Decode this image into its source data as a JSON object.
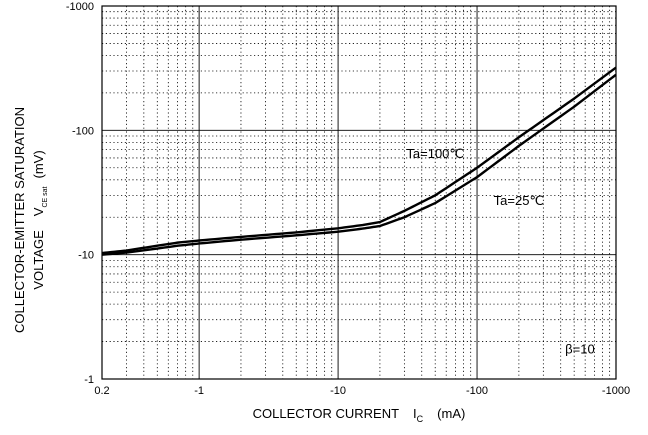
{
  "chart_data": {
    "type": "line",
    "title": "",
    "xlabel": "COLLECTOR CURRENT",
    "xlabel_symbol": "I",
    "xlabel_sub": "C",
    "xlabel_unit": "(mA)",
    "ylabel_line1": "COLLECTOR-EMITTER SATURATION",
    "ylabel_line2": "VOLTAGE",
    "ylabel_symbol": "V",
    "ylabel_sub": "CE sat",
    "ylabel_unit": "(mV)",
    "x_scale": "log",
    "y_scale": "log",
    "xlim": [
      0.2,
      1000
    ],
    "ylim": [
      1,
      1000
    ],
    "x_ticks": [
      {
        "value": 0.2,
        "label": "0.2"
      },
      {
        "value": 1,
        "label": "-1"
      },
      {
        "value": 10,
        "label": "-10"
      },
      {
        "value": 100,
        "label": "-100"
      },
      {
        "value": 1000,
        "label": "-1000"
      }
    ],
    "y_ticks": [
      {
        "value": 1,
        "label": "-1"
      },
      {
        "value": 10,
        "label": "-10"
      },
      {
        "value": 100,
        "label": "-100"
      },
      {
        "value": 1000,
        "label": "-1000"
      }
    ],
    "grid": true,
    "series": [
      {
        "name": "Ta=100℃",
        "x": [
          0.2,
          0.3,
          0.5,
          0.7,
          1,
          2,
          5,
          10,
          15,
          20,
          30,
          50,
          100,
          200,
          500,
          1000
        ],
        "y": [
          10.3,
          10.8,
          11.8,
          12.5,
          13.0,
          13.9,
          15.1,
          16.3,
          17.3,
          18.3,
          22.5,
          30.0,
          50.0,
          88.0,
          180.0,
          320.0
        ]
      },
      {
        "name": "Ta=25℃",
        "x": [
          0.2,
          0.3,
          0.5,
          0.7,
          1,
          2,
          5,
          10,
          15,
          20,
          30,
          50,
          100,
          200,
          500,
          1000
        ],
        "y": [
          10.0,
          10.4,
          11.2,
          11.8,
          12.3,
          13.2,
          14.3,
          15.3,
          16.2,
          17.0,
          20.0,
          26.0,
          42.0,
          75.0,
          155.0,
          280.0
        ]
      }
    ],
    "annotations": [
      {
        "text": "Ta=100℃",
        "x": 50,
        "y": 60
      },
      {
        "text": "Ta=25℃",
        "x": 200,
        "y": 25
      },
      {
        "text": "β=10",
        "x": 550,
        "y": 1.6
      }
    ]
  }
}
